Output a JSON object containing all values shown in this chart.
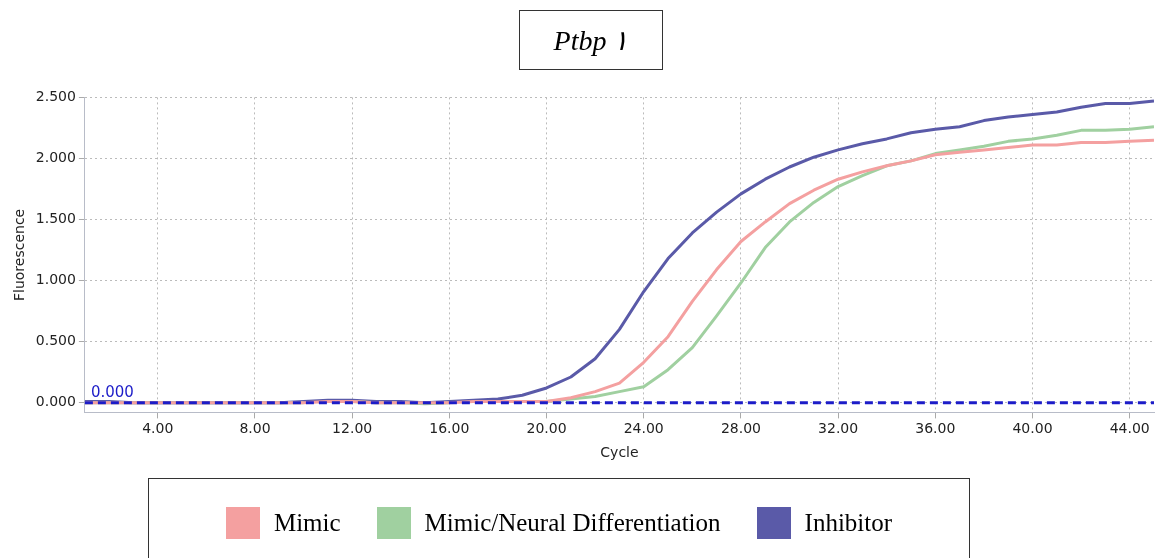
{
  "chart_data": {
    "type": "line",
    "title": "Ptbp ١",
    "xlabel": "Cycle",
    "ylabel": "Fluorescence",
    "x": [
      1,
      2,
      3,
      4,
      5,
      6,
      7,
      8,
      9,
      10,
      11,
      12,
      13,
      14,
      15,
      16,
      17,
      18,
      19,
      20,
      21,
      22,
      23,
      24,
      25,
      26,
      27,
      28,
      29,
      30,
      31,
      32,
      33,
      34,
      35,
      36,
      37,
      38,
      39,
      40,
      41,
      42,
      43,
      44,
      45
    ],
    "series": [
      {
        "name": "Mimic",
        "color": "#f4a0a0",
        "values": [
          0,
          0,
          0,
          0,
          0,
          0,
          0,
          0,
          0,
          0,
          0.01,
          0.01,
          0,
          0,
          0,
          0,
          0.01,
          0.01,
          0.01,
          0.01,
          0.04,
          0.09,
          0.16,
          0.33,
          0.54,
          0.83,
          1.09,
          1.32,
          1.48,
          1.63,
          1.74,
          1.83,
          1.89,
          1.94,
          1.98,
          2.03,
          2.05,
          2.07,
          2.09,
          2.11,
          2.11,
          2.13,
          2.13,
          2.14,
          2.15
        ]
      },
      {
        "name": "Mimic/Neural Differentiation",
        "color": "#a0d0a0",
        "values": [
          0,
          0,
          0,
          0,
          0,
          0,
          0,
          0,
          0,
          0,
          null,
          0.01,
          0,
          0,
          -0.01,
          0,
          null,
          null,
          null,
          0.01,
          0.03,
          0.05,
          0.09,
          0.13,
          0.27,
          0.45,
          0.71,
          0.98,
          1.27,
          1.48,
          1.64,
          1.77,
          1.86,
          1.94,
          1.98,
          2.04,
          2.07,
          2.1,
          2.14,
          2.16,
          2.19,
          2.23,
          2.23,
          2.24,
          2.26
        ]
      },
      {
        "name": "Inhibitor",
        "color": "#5a5aa8",
        "values": [
          0.01,
          0.01,
          0,
          0,
          0,
          0,
          0,
          0,
          0,
          0.01,
          0.02,
          0.02,
          0.01,
          0.01,
          0,
          0.01,
          0.02,
          0.03,
          0.06,
          0.12,
          0.21,
          0.36,
          0.6,
          0.91,
          1.18,
          1.39,
          1.56,
          1.71,
          1.83,
          1.93,
          2.01,
          2.07,
          2.12,
          2.16,
          2.21,
          2.24,
          2.26,
          2.31,
          2.34,
          2.36,
          2.38,
          2.42,
          2.45,
          2.45,
          2.47
        ]
      }
    ],
    "xlim": [
      1,
      45
    ],
    "ylim": [
      -0.08,
      2.5
    ],
    "xticks": [
      {
        "value": 4,
        "label": "4.00"
      },
      {
        "value": 8,
        "label": "8.00"
      },
      {
        "value": 12,
        "label": "12.00"
      },
      {
        "value": 16,
        "label": "16.00"
      },
      {
        "value": 20,
        "label": "20.00"
      },
      {
        "value": 24,
        "label": "24.00"
      },
      {
        "value": 28,
        "label": "28.00"
      },
      {
        "value": 32,
        "label": "32.00"
      },
      {
        "value": 36,
        "label": "36.00"
      },
      {
        "value": 40,
        "label": "40.00"
      },
      {
        "value": 44,
        "label": "44.00"
      }
    ],
    "yticks": [
      {
        "value": 0,
        "label": "0.000"
      },
      {
        "value": 0.5,
        "label": "0.500"
      },
      {
        "value": 1,
        "label": "1.000"
      },
      {
        "value": 1.5,
        "label": "1.500"
      },
      {
        "value": 2,
        "label": "2.000"
      },
      {
        "value": 2.5,
        "label": "2.500"
      }
    ],
    "ref_lines": [
      {
        "axis": "y",
        "value": 0,
        "label": "0.000",
        "color": "#1c1cc8",
        "line_style": "dashed"
      }
    ],
    "grid": true,
    "legend": "bottom",
    "marker": "none",
    "line_style": "solid"
  }
}
